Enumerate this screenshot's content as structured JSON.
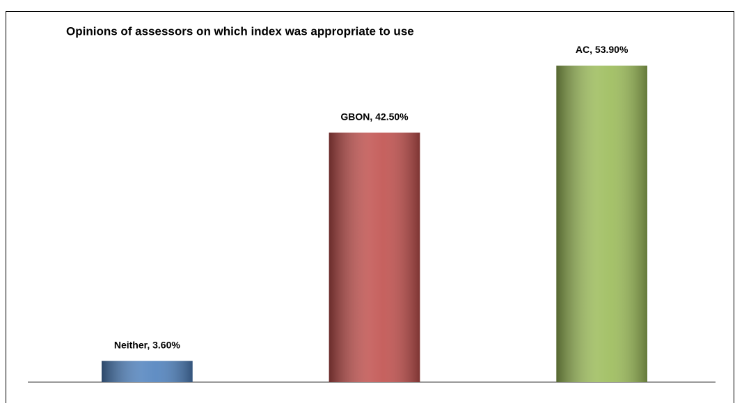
{
  "chart_data": {
    "type": "bar",
    "title": "Opinions of assessors on which index was appropriate to use",
    "values": [
      3.6,
      42.5,
      53.9
    ],
    "value_labels": [
      "Neither, 3.60%",
      "GBON, 42.50%",
      "AC, 53.90%"
    ],
    "colors": [
      "#4f81bd",
      "#c0504d",
      "#9bbb59"
    ],
    "ylim": [
      0,
      60
    ]
  }
}
